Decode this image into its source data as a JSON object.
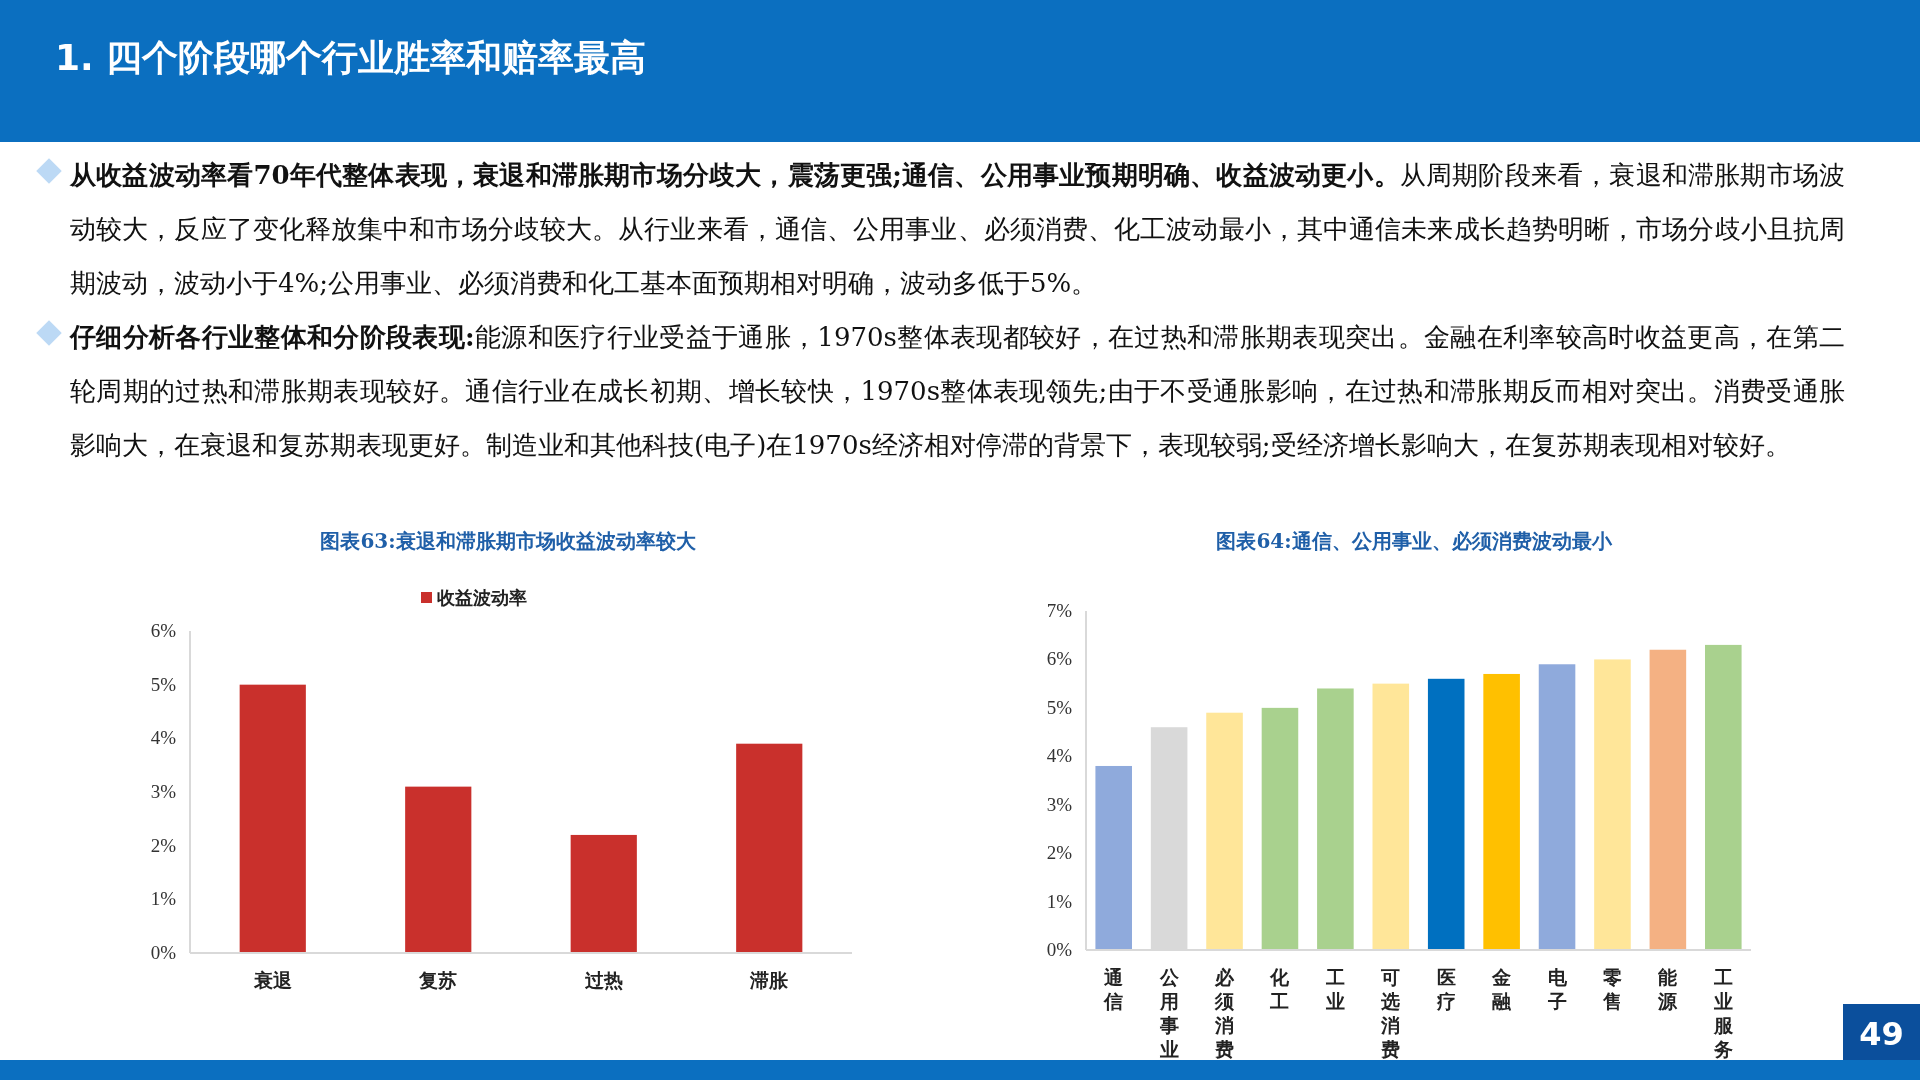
{
  "chart_data": [
    {
      "type": "other",
      "title": "1. 四个阶段哪个行业胜率和赔率最高",
      "annotations": [
        "**从收益波动率看70年代整体表现，衰退和滞胀期市场分歧大，震荡更强;通信、公用事业预期明确、收益波动更小。**从周期阶段来看，衰退和滞胀期市场波动较大，反应了变化释放集中和市场分歧较大。从行业来看，通信、公用事业、必须消费、化工波动最小，其中通信未来成长趋势明晰，市场分歧小且抗周期波动，波动小于4%;公用事业、必须消费和化工基本面预期相对明确，波动多低于5%。",
        "**仔细分析各行业整体和分阶段表现:**能源和医疗行业受益于通胀，1970s整体表现都较好，在过热和滞胀期表现突出。金融在利率较高时收益更高，在第二轮周期的过热和滞胀期表现较好。通信行业在成长初期、增长较快，1970s整体表现领先;由于不受通胀影响，在过热和滞胀期反而相对突出。消费受通胀影响大，在衰退和复苏期表现更好。制造业和其他科技(电子)在1970s经济相对停滞的背景下，表现较弱;受经济增长影响大，在复苏期表现相对较好。",
        "49"
      ]
    },
    {
      "type": "bar",
      "title": "图表63:衰退和滞胀期市场收益波动率较大",
      "categories": [
        "衰退",
        "复苏",
        "过热",
        "滞胀"
      ],
      "series": [
        {
          "name": "收益波动率",
          "color": "#c9302c",
          "values": [
            5.0,
            3.1,
            2.2,
            3.9
          ]
        }
      ],
      "ylim": [
        0,
        6
      ],
      "yticks": [
        {
          "value": 0,
          "label": "0%"
        },
        {
          "value": 1,
          "label": "1%"
        },
        {
          "value": 2,
          "label": "2%"
        },
        {
          "value": 3,
          "label": "3%"
        },
        {
          "value": 4,
          "label": "4%"
        },
        {
          "value": 5,
          "label": "5%"
        },
        {
          "value": 6,
          "label": "6%"
        }
      ],
      "legend": "top"
    },
    {
      "type": "bar",
      "title": "图表64:通信、公用事业、必须消费波动最小",
      "categories": [
        "通信",
        "公用事业",
        "必须消费",
        "化工",
        "工业",
        "可选消费",
        "医疗",
        "金融",
        "电子",
        "零售",
        "能源",
        "工业服务"
      ],
      "values": [
        3.8,
        4.6,
        4.9,
        5.0,
        5.4,
        5.5,
        5.6,
        5.7,
        5.9,
        6.0,
        6.2,
        6.3
      ],
      "colors": [
        "#8faadc",
        "#d9d9d9",
        "#ffe699",
        "#a9d18e",
        "#a9d18e",
        "#ffe699",
        "#0070c0",
        "#ffc000",
        "#8faadc",
        "#ffe699",
        "#f4b183",
        "#a9d18e"
      ],
      "ylim": [
        0,
        7
      ],
      "yticks": [
        {
          "value": 0,
          "label": "0%"
        },
        {
          "value": 1,
          "label": "1%"
        },
        {
          "value": 2,
          "label": "2%"
        },
        {
          "value": 3,
          "label": "3%"
        },
        {
          "value": 4,
          "label": "4%"
        },
        {
          "value": 5,
          "label": "5%"
        },
        {
          "value": 6,
          "label": "6%"
        },
        {
          "value": 7,
          "label": "7%"
        }
      ]
    }
  ]
}
